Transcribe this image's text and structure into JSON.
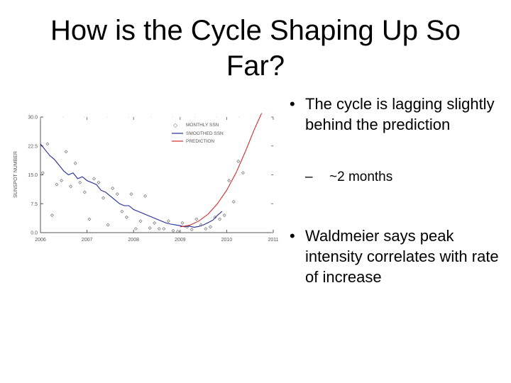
{
  "slide": {
    "title": "How is the Cycle Shaping Up So Far?",
    "bullets": [
      {
        "marker": "•",
        "text": "The cycle is lagging slightly behind the prediction",
        "sub": [
          {
            "marker": "–",
            "text": "~2 months"
          }
        ]
      },
      {
        "marker": "•",
        "text": "Waldmeier says peak intensity correlates with rate of increase"
      }
    ]
  },
  "colors": {
    "smoothed": "#1f2a9c",
    "prediction": "#d42a2a",
    "monthly": "#707070",
    "axis": "#555555"
  },
  "chart_data": {
    "type": "line",
    "ylabel": "SUNSPOT NUMBER",
    "x_ticks": [
      "2006",
      "2007",
      "2008",
      "2009",
      "2010",
      "2011"
    ],
    "y_ticks": [
      "0.0",
      "7.5",
      "15.0",
      "22.5",
      "30.0"
    ],
    "xlim": [
      2006,
      2011
    ],
    "ylim": [
      0,
      30
    ],
    "legend": {
      "placement": "top-right",
      "entries": [
        "MONTHLY SSN",
        "SMOOTHED SSN",
        "PREDICTION"
      ]
    },
    "series": [
      {
        "name": "SMOOTHED SSN",
        "style": "line",
        "x": [
          2006.0,
          2006.1,
          2006.2,
          2006.3,
          2006.4,
          2006.5,
          2006.6,
          2006.7,
          2006.8,
          2006.9,
          2007.0,
          2007.1,
          2007.2,
          2007.3,
          2007.4,
          2007.5,
          2007.6,
          2007.7,
          2007.8,
          2007.9,
          2008.0,
          2008.1,
          2008.2,
          2008.3,
          2008.4,
          2008.5,
          2008.6,
          2008.7,
          2008.8,
          2008.9,
          2009.0,
          2009.1,
          2009.2,
          2009.3,
          2009.4,
          2009.5,
          2009.6,
          2009.7,
          2009.8,
          2009.9
        ],
        "values": [
          23.0,
          21.5,
          20.0,
          19.0,
          17.5,
          16.0,
          15.0,
          15.5,
          14.0,
          14.5,
          13.5,
          13.0,
          12.5,
          11.0,
          10.5,
          9.5,
          8.5,
          7.5,
          7.0,
          7.0,
          6.0,
          5.5,
          5.0,
          4.5,
          4.0,
          3.5,
          3.0,
          2.5,
          2.2,
          2.0,
          1.8,
          1.5,
          1.7,
          1.4,
          1.6,
          2.0,
          2.6,
          3.2,
          4.5,
          5.5
        ]
      },
      {
        "name": "PREDICTION",
        "style": "line",
        "x": [
          2009.0,
          2009.2,
          2009.4,
          2009.6,
          2009.8,
          2010.0,
          2010.2,
          2010.4,
          2010.6,
          2010.75
        ],
        "values": [
          1.5,
          1.9,
          3.0,
          4.8,
          7.5,
          11.0,
          15.5,
          21.0,
          27.0,
          31.0
        ]
      },
      {
        "name": "MONTHLY SSN",
        "style": "scatter",
        "x": [
          2006.05,
          2006.15,
          2006.25,
          2006.35,
          2006.45,
          2006.55,
          2006.65,
          2006.75,
          2006.85,
          2006.95,
          2007.05,
          2007.15,
          2007.25,
          2007.35,
          2007.45,
          2007.55,
          2007.65,
          2007.75,
          2007.85,
          2007.95,
          2008.05,
          2008.15,
          2008.25,
          2008.35,
          2008.45,
          2008.55,
          2008.65,
          2008.75,
          2008.85,
          2008.95,
          2009.05,
          2009.15,
          2009.25,
          2009.35,
          2009.45,
          2009.55,
          2009.65,
          2009.75,
          2009.85,
          2009.95,
          2010.05,
          2010.15,
          2010.25,
          2010.35
        ],
        "values": [
          15.5,
          23.0,
          4.5,
          12.5,
          13.5,
          21.0,
          12.0,
          18.0,
          13.0,
          10.5,
          3.5,
          14.0,
          13.0,
          9.0,
          2.0,
          11.5,
          10.0,
          5.5,
          4.0,
          10.0,
          1.0,
          3.0,
          9.5,
          1.2,
          2.5,
          1.0,
          1.0,
          3.0,
          0.5,
          0.3,
          2.5,
          1.5,
          0.8,
          3.5,
          2.0,
          1.0,
          1.5,
          4.0,
          3.5,
          4.5,
          13.5,
          8.0,
          18.5,
          15.5
        ]
      }
    ]
  }
}
